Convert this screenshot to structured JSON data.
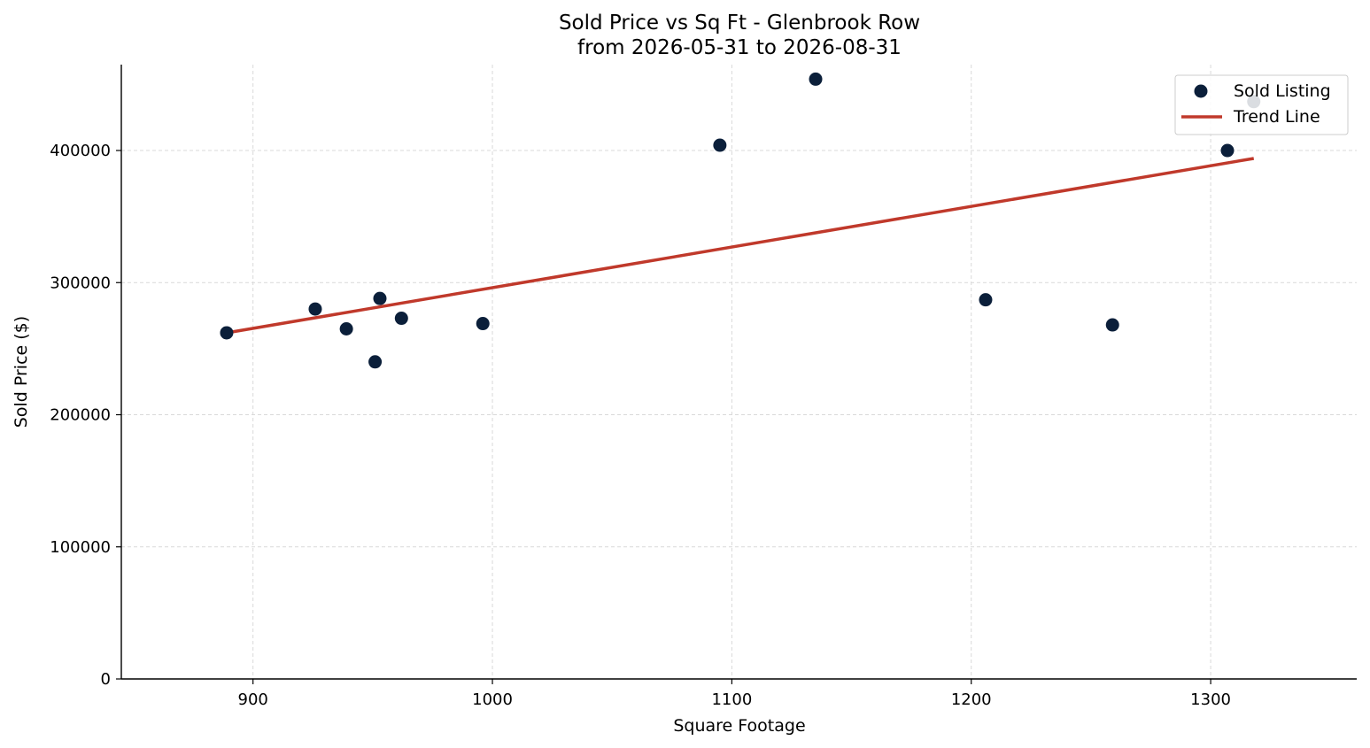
{
  "chart_data": {
    "type": "scatter",
    "title": "Sold Price vs Sq Ft - Glenbrook Row",
    "subtitle": "from 2026-05-31 to 2026-08-31",
    "xlabel": "Square Footage",
    "ylabel": "Sold Price ($)",
    "xlim": [
      845,
      1361
    ],
    "ylim": [
      0,
      465000
    ],
    "x_ticks": [
      900,
      1000,
      1100,
      1200,
      1300
    ],
    "y_ticks": [
      0,
      100000,
      200000,
      300000,
      400000
    ],
    "x_tick_labels": [
      "900",
      "1000",
      "1100",
      "1200",
      "1300"
    ],
    "y_tick_labels": [
      "0",
      "100000",
      "200000",
      "300000",
      "400000"
    ],
    "grid": true,
    "legend_position": "top-right",
    "series": [
      {
        "name": "Sold Listing",
        "kind": "scatter",
        "color": "#0b1f3a",
        "x": [
          889,
          926,
          939,
          951,
          953,
          962,
          996,
          1095,
          1135,
          1206,
          1259,
          1307,
          1318
        ],
        "y": [
          262000,
          280000,
          265000,
          240000,
          288000,
          273000,
          269000,
          404000,
          454000,
          287000,
          268000,
          400000,
          437000
        ]
      },
      {
        "name": "Trend Line",
        "kind": "line",
        "color": "#c0392b",
        "x": [
          889,
          1318
        ],
        "y": [
          262000,
          394000
        ]
      }
    ]
  }
}
